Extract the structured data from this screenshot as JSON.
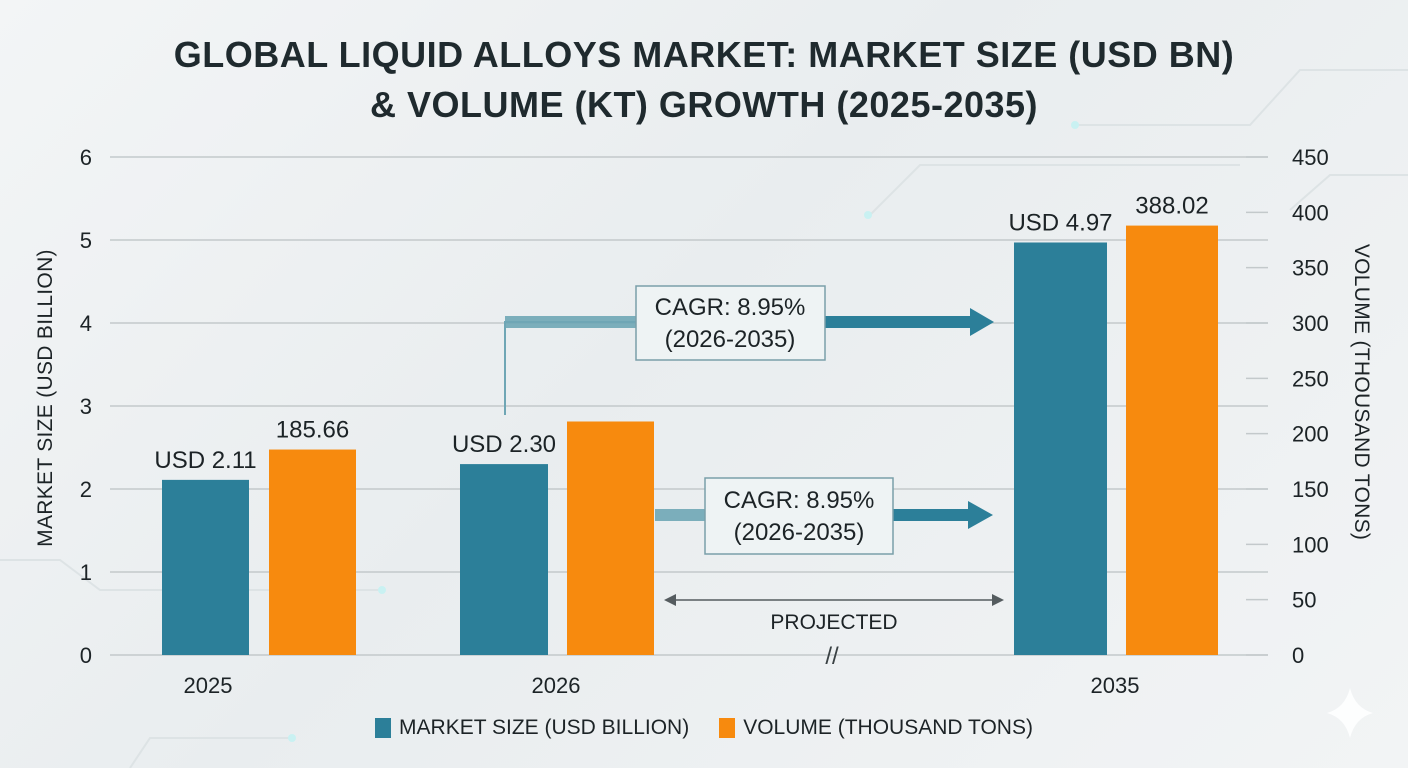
{
  "chart_data": {
    "type": "bar",
    "title_lines": [
      "GLOBAL LIQUID ALLOYS MARKET: MARKET SIZE (USD BN)",
      "& VOLUME (KT) GROWTH (2025-2035)"
    ],
    "categories": [
      "2025",
      "2026",
      "2035"
    ],
    "series": [
      {
        "name": "MARKET SIZE (USD BILLION)",
        "axis": "left",
        "color": "#2c7f99",
        "values": [
          2.11,
          2.3,
          4.97
        ],
        "data_labels": [
          "USD 2.11",
          "USD 2.30",
          "USD 4.97"
        ]
      },
      {
        "name": "VOLUME (THOUSAND TONS)",
        "axis": "right",
        "color": "#f78a0e",
        "values": [
          185.66,
          211,
          388.02
        ],
        "data_labels": [
          "185.66",
          "",
          "388.02"
        ]
      }
    ],
    "ylabel": "MARKET SIZE (USD BILLION)",
    "y2label": "VOLUME (THOUSAND TONS)",
    "ylim": [
      0,
      6
    ],
    "y2lim": [
      0,
      450
    ],
    "yticks": [
      "0",
      "1",
      "2",
      "3",
      "4",
      "5",
      "6"
    ],
    "y2ticks": [
      "0",
      "50",
      "100",
      "150",
      "200",
      "250",
      "300",
      "350",
      "400",
      "450"
    ],
    "grid": true,
    "legend_position": "bottom",
    "annotations": {
      "cagr_top": {
        "line1": "CAGR: 8.95%",
        "line2": "(2026-2035)"
      },
      "cagr_bottom": {
        "line1": "CAGR: 8.95%",
        "line2": "(2026-2035)"
      },
      "projected": "PROJECTED",
      "break_mark": "//"
    }
  }
}
